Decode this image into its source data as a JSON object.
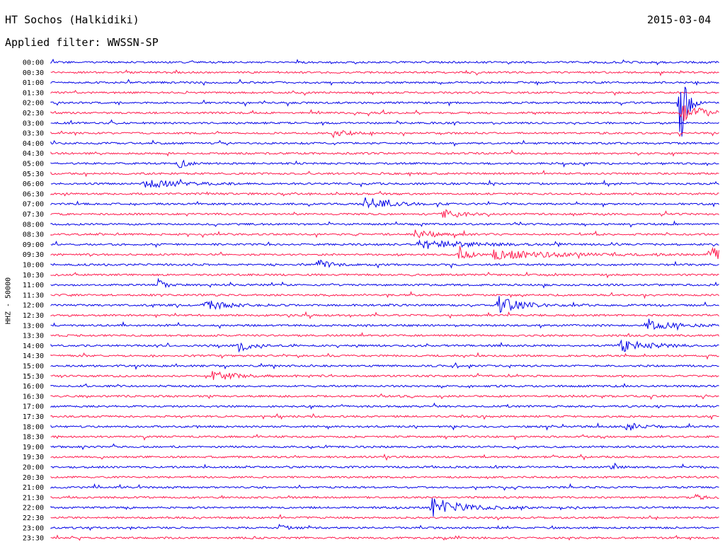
{
  "header": {
    "station": "HT Sochos (Halkidiki)",
    "filter": "Applied filter: WWSSN-SP",
    "date": "2015-03-04"
  },
  "chart_data": {
    "type": "line",
    "ylabel": "HHZ - 50000",
    "colors": {
      "even": "#0000e6",
      "odd": "#ff1a4d"
    },
    "rows": [
      "00:00",
      "00:30",
      "01:00",
      "01:30",
      "02:00",
      "02:30",
      "03:00",
      "03:30",
      "04:00",
      "04:30",
      "05:00",
      "05:30",
      "06:00",
      "06:30",
      "07:00",
      "07:30",
      "08:00",
      "08:30",
      "09:00",
      "09:30",
      "10:00",
      "10:30",
      "11:00",
      "11:30",
      "12:00",
      "12:30",
      "13:00",
      "13:30",
      "14:00",
      "14:30",
      "15:00",
      "15:30",
      "16:00",
      "16:30",
      "17:00",
      "17:30",
      "18:00",
      "18:30",
      "19:00",
      "19:30",
      "20:00",
      "20:30",
      "21:00",
      "21:30",
      "22:00",
      "22:30",
      "23:00",
      "23:30"
    ],
    "events": [
      {
        "row": 4,
        "x": 0.94,
        "amp": 95,
        "dur": 0.008
      },
      {
        "row": 5,
        "x": 0.945,
        "amp": 14,
        "dur": 0.03
      },
      {
        "row": 7,
        "x": 0.42,
        "amp": 7,
        "dur": 0.02
      },
      {
        "row": 10,
        "x": 0.19,
        "amp": 8,
        "dur": 0.01
      },
      {
        "row": 12,
        "x": 0.14,
        "amp": 7,
        "dur": 0.04
      },
      {
        "row": 14,
        "x": 0.47,
        "amp": 10,
        "dur": 0.03
      },
      {
        "row": 15,
        "x": 0.585,
        "amp": 9,
        "dur": 0.02
      },
      {
        "row": 17,
        "x": 0.54,
        "amp": 7,
        "dur": 0.03
      },
      {
        "row": 18,
        "x": 0.55,
        "amp": 7,
        "dur": 0.06
      },
      {
        "row": 19,
        "x": 0.61,
        "amp": 20,
        "dur": 0.01
      },
      {
        "row": 19,
        "x": 0.66,
        "amp": 7,
        "dur": 0.08
      },
      {
        "row": 19,
        "x": 0.985,
        "amp": 18,
        "dur": 0.015
      },
      {
        "row": 20,
        "x": 0.4,
        "amp": 8,
        "dur": 0.015
      },
      {
        "row": 22,
        "x": 0.16,
        "amp": 8,
        "dur": 0.01
      },
      {
        "row": 24,
        "x": 0.23,
        "amp": 7,
        "dur": 0.03
      },
      {
        "row": 24,
        "x": 0.67,
        "amp": 12,
        "dur": 0.03
      },
      {
        "row": 26,
        "x": 0.89,
        "amp": 6,
        "dur": 0.04
      },
      {
        "row": 28,
        "x": 0.28,
        "amp": 9,
        "dur": 0.015
      },
      {
        "row": 28,
        "x": 0.85,
        "amp": 9,
        "dur": 0.04
      },
      {
        "row": 31,
        "x": 0.24,
        "amp": 6,
        "dur": 0.04
      },
      {
        "row": 36,
        "x": 0.86,
        "amp": 6,
        "dur": 0.02
      },
      {
        "row": 40,
        "x": 0.84,
        "amp": 10,
        "dur": 0.005
      },
      {
        "row": 43,
        "x": 0.96,
        "amp": 7,
        "dur": 0.01
      },
      {
        "row": 44,
        "x": 0.57,
        "amp": 14,
        "dur": 0.04
      },
      {
        "row": 46,
        "x": 0.34,
        "amp": 5,
        "dur": 0.01
      }
    ]
  }
}
